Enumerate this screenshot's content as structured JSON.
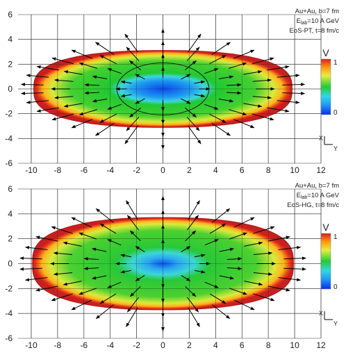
{
  "chart_data": [
    {
      "type": "heatmap",
      "title": "",
      "annotation": [
        "Au+Au, b=7 fm",
        "E_lab=10 A GeV",
        "EoS-PT, t=8 fm/c"
      ],
      "xlim": [
        -11,
        12
      ],
      "ylim": [
        -6,
        6
      ],
      "xticks": [
        "-10",
        "-8",
        "-6",
        "-4",
        "-2",
        "0",
        "2",
        "4",
        "6",
        "8",
        "10",
        "12"
      ],
      "yticks": [
        "6",
        "4",
        "2",
        "0",
        "-2",
        "-4",
        "-6"
      ],
      "grid": true,
      "colorbar": {
        "label": "V",
        "min": "0",
        "max": "1"
      },
      "axis_indicator": {
        "x": "X",
        "y": "Y"
      },
      "shape": {
        "x_extent": 9.8,
        "y_extent": 3.1,
        "inner_contour_x": 3.5,
        "inner_contour_y": 2.1
      },
      "velocity_field": "radial-arrows"
    },
    {
      "type": "heatmap",
      "title": "",
      "annotation": [
        "Au+Au, b=7 fm",
        "E_lab=10 A GeV",
        "EoS-HG, t=8 fm/c"
      ],
      "xlim": [
        -11,
        12
      ],
      "ylim": [
        -6,
        6
      ],
      "xticks": [
        "-10",
        "-8",
        "-6",
        "-4",
        "-2",
        "0",
        "2",
        "4",
        "6",
        "8",
        "10",
        "12"
      ],
      "yticks": [
        "6",
        "4",
        "2",
        "0",
        "-2",
        "-4",
        "-6"
      ],
      "grid": true,
      "colorbar": {
        "label": "V",
        "min": "0",
        "max": "1"
      },
      "axis_indicator": {
        "x": "X",
        "y": "Y"
      },
      "shape": {
        "x_extent": 9.9,
        "y_extent": 3.7
      },
      "velocity_field": "radial-arrows"
    }
  ],
  "colors": {
    "edge": "#d32020",
    "orange": "#ff8c00",
    "yellow": "#f5e04a",
    "green": "#22cc22",
    "cyan": "#33ccee",
    "blue": "#0a4aee"
  }
}
